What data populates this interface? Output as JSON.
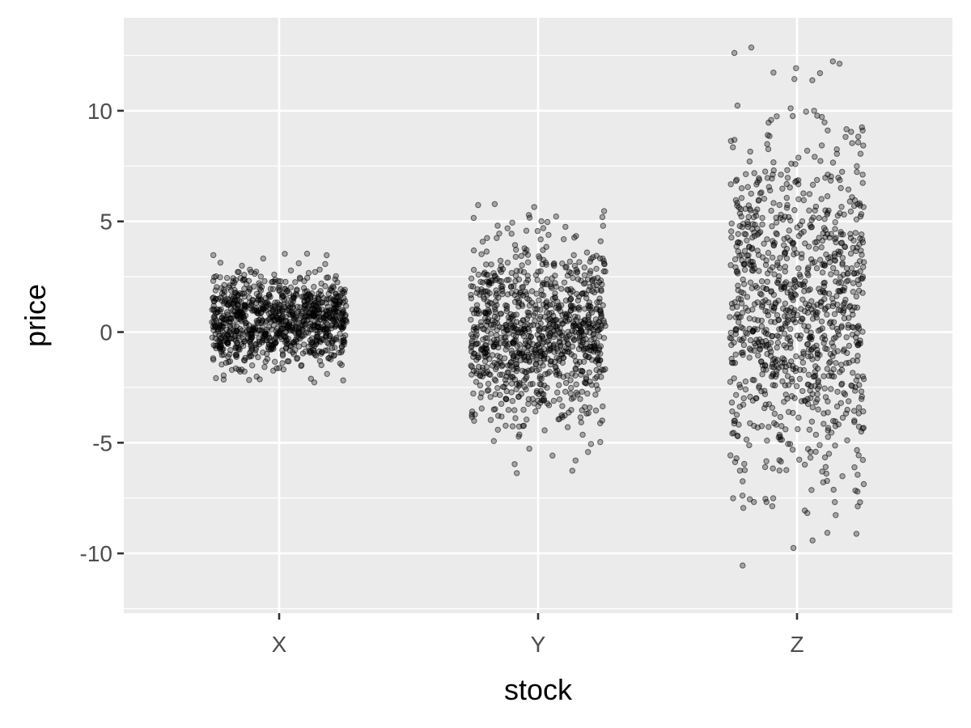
{
  "chart_data": {
    "type": "scatter",
    "style": "jitter",
    "xlabel": "stock",
    "ylabel": "price",
    "categories": [
      "X",
      "Y",
      "Z"
    ],
    "ylim": [
      -12.7,
      14.2
    ],
    "y_ticks": [
      -10,
      -5,
      0,
      5,
      10
    ],
    "y_tick_labels": [
      "-10",
      "-5",
      "0",
      "5",
      "10"
    ],
    "jitter_width": 0.26,
    "grid": true,
    "panel_background": "#ebebeb",
    "grid_color": "#ffffff",
    "point_color": "#000000",
    "point_alpha": 0.3,
    "points_per_category": 1000,
    "series": [
      {
        "category": "X",
        "distribution": "normal",
        "mean": 0.5,
        "sd": 1.0,
        "observed_min": -2.3,
        "observed_max": 3.8
      },
      {
        "category": "Y",
        "distribution": "normal",
        "mean": 0.0,
        "sd": 2.0,
        "observed_min": -6.6,
        "observed_max": 6.6
      },
      {
        "category": "Z",
        "distribution": "normal",
        "mean": 1.0,
        "sd": 4.0,
        "observed_min": -11.6,
        "observed_max": 12.9
      }
    ]
  }
}
